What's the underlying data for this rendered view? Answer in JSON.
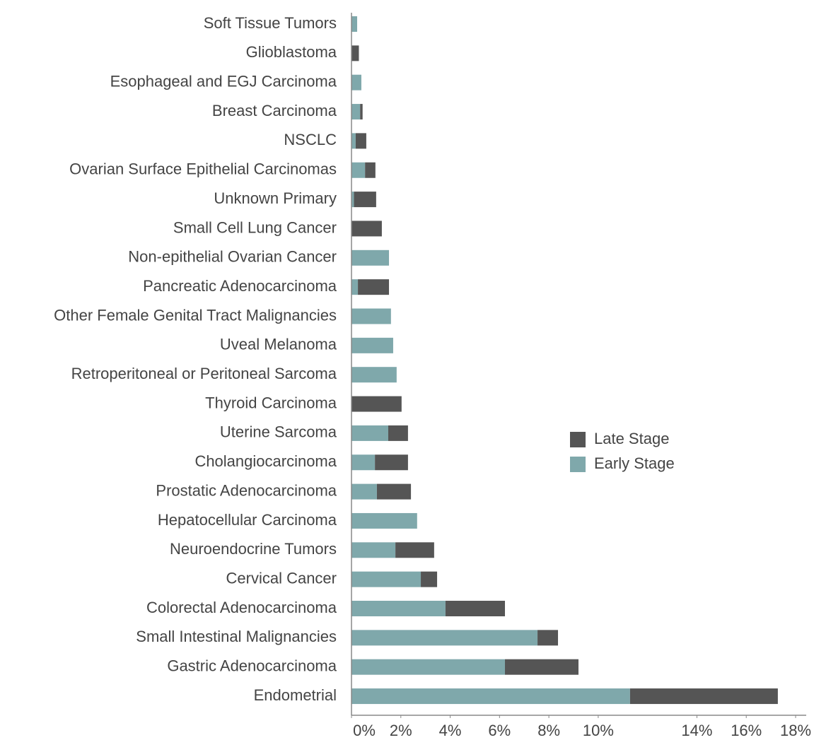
{
  "chart_data": {
    "type": "stacked_barh",
    "categories": [
      "Soft Tissue Tumors",
      "Glioblastoma",
      "Esophageal and EGJ Carcinoma",
      "Breast Carcinoma",
      "NSCLC",
      "Ovarian Surface Epithelial Carcinomas",
      "Unknown Primary",
      "Small Cell Lung Cancer",
      "Non-epithelial Ovarian Cancer",
      "Pancreatic Adenocarcinoma",
      "Other Female Genital Tract Malignancies",
      "Uveal Melanoma",
      "Retroperitoneal or Peritoneal Sarcoma",
      "Thyroid Carcinoma",
      "Uterine Sarcoma",
      "Cholangiocarcinoma",
      "Prostatic Adenocarcinoma",
      "Hepatocellular Carcinoma",
      "Neuroendocrine Tumors",
      "Cervical Cancer",
      "Colorectal Adenocarcinoma",
      "Small Intestinal Malignancies",
      "Gastric Adenocarcinoma",
      "Endometrial"
    ],
    "series": [
      {
        "name": "Early Stage",
        "color": "#7fa8ab",
        "values": [
          0.23,
          0,
          0.4,
          0.35,
          0.17,
          0.55,
          0.1,
          0,
          1.52,
          0.26,
          1.6,
          1.69,
          1.83,
          0,
          1.49,
          0.95,
          1.03,
          2.66,
          1.78,
          2.81,
          3.81,
          7.54,
          6.22,
          11.29
        ]
      },
      {
        "name": "Late Stage",
        "color": "#555555",
        "values": [
          0,
          0.3,
          0,
          0.1,
          0.43,
          0.42,
          0.9,
          1.23,
          0,
          1.26,
          0,
          0,
          0,
          2.03,
          0.8,
          1.34,
          1.38,
          0,
          1.57,
          0.66,
          2.41,
          0.83,
          2.98,
          5.99
        ]
      }
    ],
    "legend_order": [
      "Late Stage",
      "Early Stage"
    ],
    "legend": "right",
    "xlim": [
      0,
      18
    ],
    "xticks": [
      {
        "value": 0,
        "label": "0%"
      },
      {
        "value": 2,
        "label": "2%"
      },
      {
        "value": 4,
        "label": "4%"
      },
      {
        "value": 6,
        "label": "6%"
      },
      {
        "value": 8,
        "label": "8%"
      },
      {
        "value": 10,
        "label": "10%"
      },
      {
        "value": 14,
        "label": "14%"
      },
      {
        "value": 16,
        "label": "16%"
      },
      {
        "value": 18,
        "label": "18%"
      }
    ]
  }
}
